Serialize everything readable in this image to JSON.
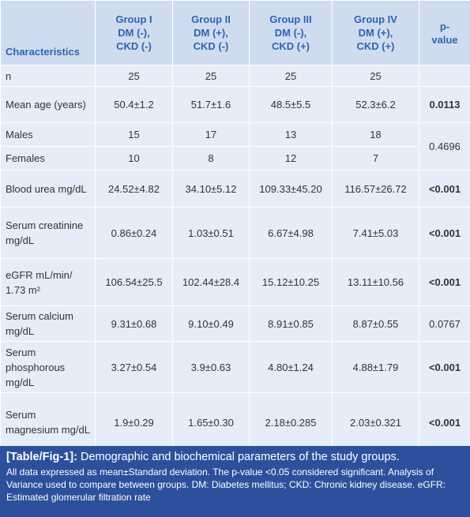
{
  "table": {
    "header": [
      "Characteristics",
      "Group I\nDM (-),\nCKD (-)",
      "Group II\nDM (+),\nCKD (-)",
      "Group III\nDM (-),\nCKD (+)",
      "Group IV\nDM (+),\nCKD (+)",
      "p-\nvalue"
    ],
    "rows": [
      [
        "n",
        "25",
        "25",
        "25",
        "25"
      ],
      [
        "Mean age (years)",
        "50.4±1.2",
        "51.7±1.6",
        "48.5±5.5",
        "52.3±6.2",
        "0.0113"
      ],
      [
        "Males",
        "15",
        "17",
        "13",
        "18",
        "0.4696"
      ],
      [
        "Females",
        "10",
        "8",
        "12",
        "7"
      ],
      [
        "Blood urea mg/dL",
        "24.52±4.82",
        "34.10±5.12",
        "109.33±45.20",
        "116.57±26.72",
        "<0.001"
      ],
      [
        "Serum creatinine mg/dL",
        "0.86±0.24",
        "1.03±0.51",
        "6.67±4.98",
        "7.41±5.03",
        "<0.001"
      ],
      [
        "eGFR mL/min/ 1.73 m²",
        "106.54±25.5",
        "102.44±28.4",
        "15.12±10.25",
        "13.11±10.56",
        "<0.001"
      ],
      [
        "Serum calcium mg/dL",
        "9.31±0.68",
        "9.10±0.49",
        "8.91±0.85",
        "8.87±0.55",
        "0.0767"
      ],
      [
        "Serum phosphorous mg/dL",
        "3.27±0.54",
        "3.9±0.63",
        "4.80±1.24",
        "4.88±1.79",
        "<0.001"
      ],
      [
        "Serum magnesium mg/dL",
        "1.9±0.29",
        "1.65±0.30",
        "2.18±0.285",
        "2.03±0.321",
        "<0.001"
      ]
    ]
  },
  "caption": {
    "label": "[Table/Fig-1]:",
    "title": "Demographic and biochemical parameters of the study groups.",
    "note": "All data expressed as mean±Standard deviation. The p-value <0.05 considered significant. Analysis of Variance used to compare between groups. DM: Diabetes mellitus; CKD: Chronic kidney disease. eGFR: Estimated glomerular filtration rate"
  }
}
